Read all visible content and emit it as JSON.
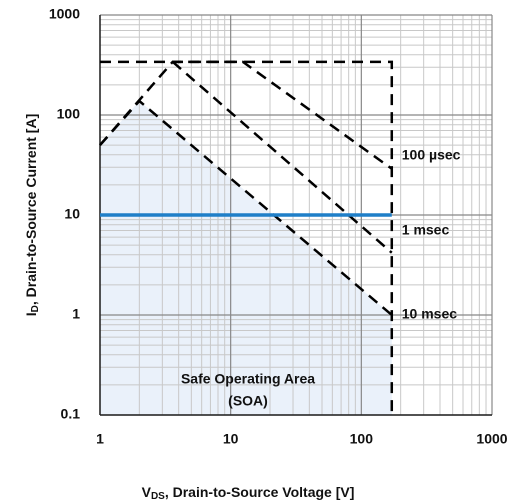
{
  "chart_data": {
    "type": "line",
    "xlog": true,
    "ylog": true,
    "grid": true,
    "x_label": {
      "main": "V",
      "sub": "DS",
      "rest": ", Drain-to-Source Voltage [V]"
    },
    "y_label": {
      "main": "I",
      "sub": "D",
      "rest": ",  Drain-to-Source Current [A]"
    },
    "xlim": [
      1,
      1000
    ],
    "ylim": [
      0.1,
      1000
    ],
    "xticks": [
      1,
      10,
      100,
      1000
    ],
    "yticks": [
      0.1,
      1,
      10,
      100,
      1000
    ],
    "xminorticks": [
      2,
      3,
      4,
      5,
      6,
      7,
      8,
      9,
      20,
      30,
      40,
      50,
      60,
      70,
      80,
      90,
      200,
      300,
      400,
      500,
      600,
      700,
      800,
      900
    ],
    "yminorticks": [
      0.2,
      0.3,
      0.4,
      0.5,
      0.6,
      0.7,
      0.8,
      0.9,
      2,
      3,
      4,
      5,
      6,
      7,
      8,
      9,
      20,
      30,
      40,
      50,
      60,
      70,
      80,
      90,
      200,
      300,
      400,
      500,
      600,
      700,
      800,
      900
    ],
    "annotations": [
      "Safe Operating Area",
      "(SOA)"
    ],
    "series": [
      {
        "color": "#000000",
        "dashed": true,
        "x": [
          1,
          171,
          171
        ],
        "values": [
          340,
          340,
          0.1
        ]
      },
      {
        "name": "100 µsec",
        "color": "#000000",
        "dashed": true,
        "x": [
          1,
          3.6,
          12.4,
          171
        ],
        "values": [
          50,
          340,
          340,
          29
        ]
      },
      {
        "name": "1 msec",
        "color": "#000000",
        "dashed": true,
        "x": [
          3.6,
          171
        ],
        "values": [
          340,
          4.2
        ]
      },
      {
        "name": "10 msec",
        "color": "#000000",
        "dashed": true,
        "fill": "#eaf1fa",
        "x": [
          1,
          2,
          171
        ],
        "values": [
          50,
          138,
          1
        ]
      },
      {
        "color": "#1f7fc8",
        "dashed": false,
        "x": [
          1,
          171
        ],
        "values": [
          10,
          10
        ]
      }
    ]
  }
}
